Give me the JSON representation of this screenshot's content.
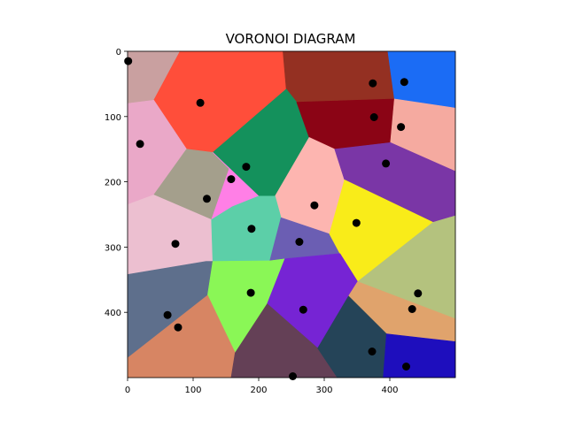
{
  "chart_data": {
    "type": "voronoi",
    "title": "VORONOI DIAGRAM",
    "xlabel": "",
    "ylabel": "",
    "xlim": [
      0,
      500
    ],
    "ylim": [
      500,
      0
    ],
    "y_inverted": true,
    "grid": false,
    "legend": "none",
    "x_ticks": [
      0,
      100,
      200,
      300,
      400
    ],
    "y_ticks": [
      0,
      100,
      200,
      300,
      400
    ],
    "x_tick_labels": [
      "0",
      "100",
      "200",
      "300",
      "400"
    ],
    "y_tick_labels": [
      "0",
      "100",
      "200",
      "300",
      "400"
    ],
    "point_color": "#000000",
    "points": [
      {
        "x": 1,
        "y": 15
      },
      {
        "x": 111,
        "y": 79
      },
      {
        "x": 19,
        "y": 142
      },
      {
        "x": 181,
        "y": 177
      },
      {
        "x": 158,
        "y": 196
      },
      {
        "x": 121,
        "y": 226
      },
      {
        "x": 189,
        "y": 272
      },
      {
        "x": 73,
        "y": 295
      },
      {
        "x": 262,
        "y": 292
      },
      {
        "x": 285,
        "y": 236
      },
      {
        "x": 349,
        "y": 263
      },
      {
        "x": 374,
        "y": 49
      },
      {
        "x": 422,
        "y": 47
      },
      {
        "x": 376,
        "y": 101
      },
      {
        "x": 417,
        "y": 116
      },
      {
        "x": 394,
        "y": 172
      },
      {
        "x": 443,
        "y": 371
      },
      {
        "x": 434,
        "y": 395
      },
      {
        "x": 188,
        "y": 370
      },
      {
        "x": 268,
        "y": 396
      },
      {
        "x": 61,
        "y": 404
      },
      {
        "x": 77,
        "y": 423
      },
      {
        "x": 373,
        "y": 460
      },
      {
        "x": 425,
        "y": 483
      },
      {
        "x": 252,
        "y": 498
      }
    ],
    "regions": [
      {
        "color": "#c9a0a0",
        "vertices": [
          [
            0,
            0
          ],
          [
            80,
            0
          ],
          [
            40,
            75
          ],
          [
            0,
            80
          ]
        ]
      },
      {
        "color": "#ff4e3a",
        "vertices": [
          [
            80,
            0
          ],
          [
            237,
            0
          ],
          [
            242,
            58
          ],
          [
            130,
            155
          ],
          [
            90,
            150
          ],
          [
            40,
            75
          ]
        ]
      },
      {
        "color": "#943022",
        "vertices": [
          [
            237,
            0
          ],
          [
            397,
            0
          ],
          [
            407,
            73
          ],
          [
            258,
            78
          ],
          [
            242,
            58
          ]
        ]
      },
      {
        "color": "#1b6cf5",
        "vertices": [
          [
            397,
            0
          ],
          [
            500,
            0
          ],
          [
            500,
            87
          ],
          [
            407,
            73
          ]
        ]
      },
      {
        "color": "#eaa8c8",
        "vertices": [
          [
            0,
            80
          ],
          [
            40,
            75
          ],
          [
            90,
            150
          ],
          [
            40,
            220
          ],
          [
            0,
            235
          ]
        ]
      },
      {
        "color": "#14915c",
        "vertices": [
          [
            130,
            155
          ],
          [
            242,
            58
          ],
          [
            258,
            78
          ],
          [
            277,
            132
          ],
          [
            225,
            222
          ],
          [
            200,
            222
          ]
        ]
      },
      {
        "color": "#8b0415",
        "vertices": [
          [
            258,
            78
          ],
          [
            407,
            73
          ],
          [
            401,
            140
          ],
          [
            316,
            150
          ],
          [
            277,
            132
          ]
        ]
      },
      {
        "color": "#f5aaa0",
        "vertices": [
          [
            407,
            73
          ],
          [
            500,
            87
          ],
          [
            500,
            184
          ],
          [
            401,
            140
          ]
        ]
      },
      {
        "color": "#a49f8c",
        "vertices": [
          [
            90,
            150
          ],
          [
            130,
            155
          ],
          [
            155,
            180
          ],
          [
            128,
            258
          ],
          [
            40,
            220
          ]
        ]
      },
      {
        "color": "#ff7fe6",
        "vertices": [
          [
            130,
            155
          ],
          [
            200,
            222
          ],
          [
            160,
            238
          ],
          [
            128,
            258
          ],
          [
            155,
            180
          ]
        ]
      },
      {
        "color": "#fdb5b0",
        "vertices": [
          [
            277,
            132
          ],
          [
            316,
            150
          ],
          [
            331,
            197
          ],
          [
            308,
            280
          ],
          [
            234,
            255
          ],
          [
            225,
            222
          ]
        ]
      },
      {
        "color": "#7a36a6",
        "vertices": [
          [
            316,
            150
          ],
          [
            401,
            140
          ],
          [
            500,
            184
          ],
          [
            500,
            252
          ],
          [
            466,
            262
          ],
          [
            331,
            197
          ]
        ]
      },
      {
        "color": "#ecbfd0",
        "vertices": [
          [
            0,
            235
          ],
          [
            40,
            220
          ],
          [
            128,
            258
          ],
          [
            130,
            322
          ],
          [
            120,
            322
          ],
          [
            0,
            342
          ]
        ]
      },
      {
        "color": "#5ccfa8",
        "vertices": [
          [
            160,
            238
          ],
          [
            200,
            222
          ],
          [
            225,
            222
          ],
          [
            234,
            255
          ],
          [
            217,
            321
          ],
          [
            130,
            322
          ],
          [
            128,
            258
          ]
        ]
      },
      {
        "color": "#6b5eb3",
        "vertices": [
          [
            234,
            255
          ],
          [
            308,
            280
          ],
          [
            324,
            310
          ],
          [
            240,
            318
          ],
          [
            217,
            321
          ]
        ]
      },
      {
        "color": "#f9ec19",
        "vertices": [
          [
            331,
            197
          ],
          [
            466,
            262
          ],
          [
            351,
            353
          ],
          [
            324,
            310
          ],
          [
            308,
            280
          ]
        ]
      },
      {
        "color": "#b4c27e",
        "vertices": [
          [
            466,
            262
          ],
          [
            500,
            252
          ],
          [
            500,
            410
          ],
          [
            351,
            353
          ]
        ]
      },
      {
        "color": "#5e6f8c",
        "vertices": [
          [
            0,
            342
          ],
          [
            120,
            322
          ],
          [
            130,
            322
          ],
          [
            122,
            374
          ],
          [
            0,
            470
          ]
        ]
      },
      {
        "color": "#8af756",
        "vertices": [
          [
            130,
            322
          ],
          [
            217,
            321
          ],
          [
            240,
            318
          ],
          [
            213,
            387
          ],
          [
            164,
            462
          ],
          [
            122,
            374
          ]
        ]
      },
      {
        "color": "#7624d4",
        "vertices": [
          [
            240,
            318
          ],
          [
            324,
            310
          ],
          [
            351,
            353
          ],
          [
            337,
            375
          ],
          [
            290,
            455
          ],
          [
            213,
            387
          ]
        ]
      },
      {
        "color": "#e0a36c",
        "vertices": [
          [
            351,
            353
          ],
          [
            500,
            410
          ],
          [
            500,
            445
          ],
          [
            395,
            433
          ],
          [
            337,
            375
          ]
        ]
      },
      {
        "color": "#d78563",
        "vertices": [
          [
            0,
            470
          ],
          [
            122,
            374
          ],
          [
            164,
            462
          ],
          [
            158,
            500
          ],
          [
            0,
            500
          ]
        ]
      },
      {
        "color": "#644056",
        "vertices": [
          [
            164,
            462
          ],
          [
            213,
            387
          ],
          [
            290,
            455
          ],
          [
            320,
            500
          ],
          [
            158,
            500
          ]
        ]
      },
      {
        "color": "#254458",
        "vertices": [
          [
            290,
            455
          ],
          [
            337,
            375
          ],
          [
            395,
            433
          ],
          [
            390,
            500
          ],
          [
            320,
            500
          ]
        ]
      },
      {
        "color": "#1e0ebd",
        "vertices": [
          [
            395,
            433
          ],
          [
            500,
            445
          ],
          [
            500,
            500
          ],
          [
            390,
            500
          ]
        ]
      }
    ]
  }
}
